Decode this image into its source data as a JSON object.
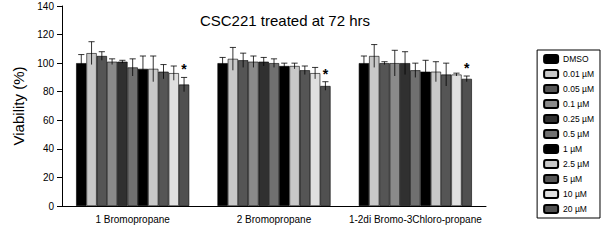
{
  "chart_data": {
    "type": "bar",
    "title": "CSC221 treated at 72 hrs",
    "y_label": "Viability (%)",
    "categories": [
      "1 Bromopropane",
      "2 Bromopropane",
      "1-2di Bromo-3Chloro-propane"
    ],
    "ylim": [
      0,
      140
    ],
    "yticks": [
      0,
      20,
      40,
      60,
      80,
      100,
      120,
      140
    ],
    "legend": "right",
    "grid": false,
    "series": [
      {
        "name": "DMSO",
        "color": "#000000",
        "values": [
          100,
          100,
          100
        ],
        "errors": [
          6,
          4,
          5
        ]
      },
      {
        "name": "0.01 µM",
        "color": "#c8c8c8",
        "values": [
          107,
          103,
          105
        ],
        "errors": [
          8,
          8,
          8
        ]
      },
      {
        "name": "0.05 µM",
        "color": "#555555",
        "values": [
          105,
          102,
          100
        ],
        "errors": [
          3,
          5,
          1
        ]
      },
      {
        "name": "0.1 µM",
        "color": "#8a8a8a",
        "values": [
          101,
          101,
          100
        ],
        "errors": [
          2,
          4,
          9
        ]
      },
      {
        "name": "0.25 µM",
        "color": "#303030",
        "values": [
          101,
          101,
          100
        ],
        "errors": [
          1,
          3,
          8
        ]
      },
      {
        "name": "0.5 µM",
        "color": "#707070",
        "values": [
          97,
          100,
          95
        ],
        "errors": [
          6,
          3,
          5
        ]
      },
      {
        "name": "1 µM",
        "color": "#000000",
        "values": [
          96,
          98,
          94
        ],
        "errors": [
          9,
          2,
          8
        ]
      },
      {
        "name": "2.5 µM",
        "color": "#c8c8c8",
        "values": [
          96,
          98,
          94
        ],
        "errors": [
          9,
          2,
          7
        ]
      },
      {
        "name": "5 µM",
        "color": "#555555",
        "values": [
          94,
          95,
          92
        ],
        "errors": [
          5,
          3,
          8
        ]
      },
      {
        "name": "10 µM",
        "color": "#e0e0e0",
        "values": [
          93,
          93,
          92
        ],
        "errors": [
          5,
          4,
          1
        ]
      },
      {
        "name": "20 µM",
        "color": "#505050",
        "values": [
          85,
          84,
          89
        ],
        "errors": [
          5,
          3,
          2
        ]
      }
    ],
    "annotations": [
      {
        "category": "1 Bromopropane",
        "series": "20 µM",
        "text": "*"
      },
      {
        "category": "2 Bromopropane",
        "series": "20 µM",
        "text": "*"
      },
      {
        "category": "1-2di Bromo-3Chloro-propane",
        "series": "20 µM",
        "text": "*"
      }
    ]
  }
}
